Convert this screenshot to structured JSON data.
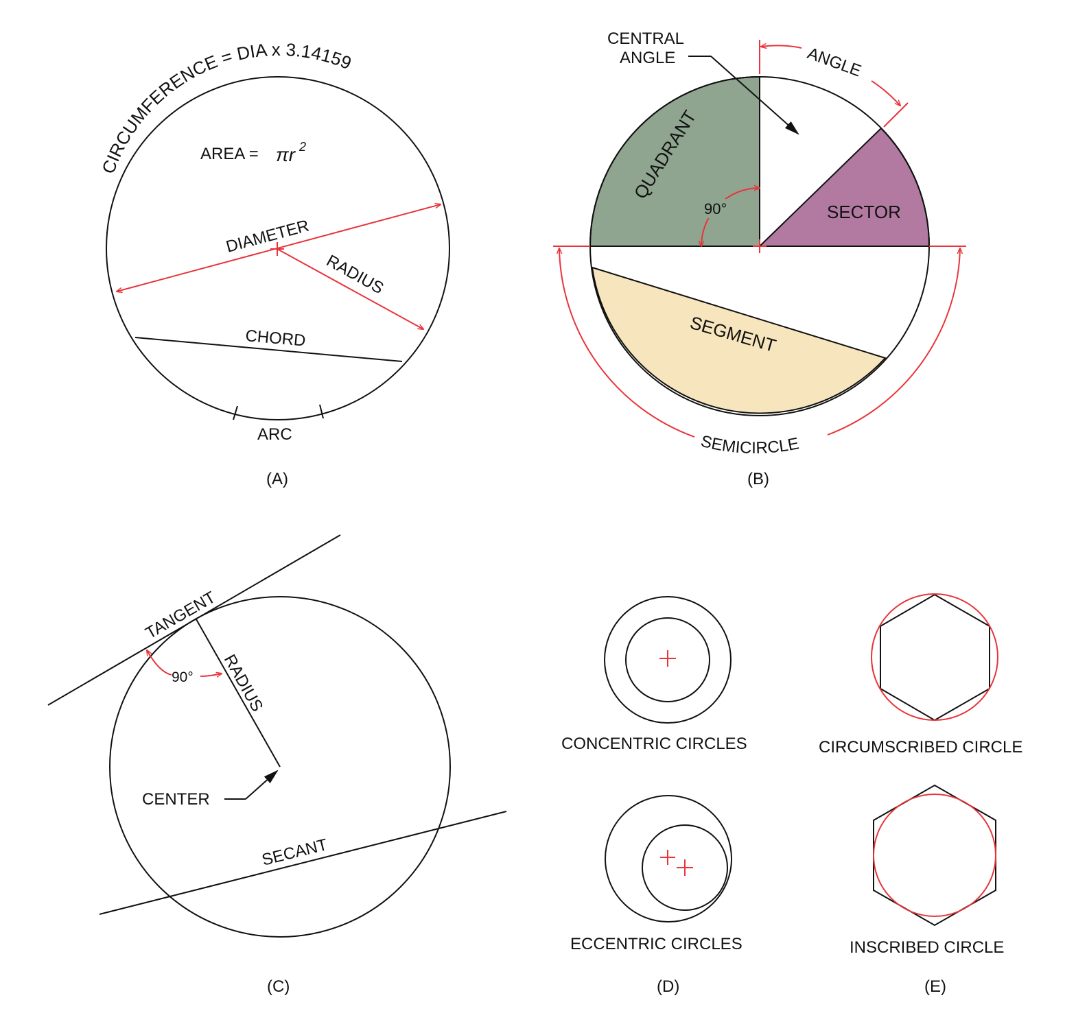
{
  "colors": {
    "ink": "#111111",
    "accent_red": "#e8343a",
    "quadrant_fill": "#8fa58f",
    "sector_fill": "#b27aa1",
    "segment_fill": "#f7e6bd",
    "background": "#ffffff"
  },
  "panel_a": {
    "caption": "(A)",
    "circumference_label": "CIRCUMFERENCE = DIA x 3.14159",
    "area_label": "AREA =",
    "area_formula_pi_r": "πr",
    "area_formula_exponent": "2",
    "diameter_label": "DIAMETER",
    "radius_label": "RADIUS",
    "chord_label": "CHORD",
    "arc_label": "ARC"
  },
  "panel_b": {
    "caption": "(B)",
    "central_angle_label_line1": "CENTRAL",
    "central_angle_label_line2": "ANGLE",
    "angle_label": "ANGLE",
    "quadrant_label": "QUADRANT",
    "right_angle_label": "90°",
    "sector_label": "SECTOR",
    "segment_label": "SEGMENT",
    "semicircle_label": "SEMICIRCLE"
  },
  "panel_c": {
    "caption": "(C)",
    "tangent_label": "TANGENT",
    "radius_label": "RADIUS",
    "right_angle_label": "90°",
    "center_label": "CENTER",
    "secant_label": "SECANT"
  },
  "panel_d": {
    "caption": "(D)",
    "concentric_label": "CONCENTRIC CIRCLES",
    "eccentric_label": "ECCENTRIC CIRCLES"
  },
  "panel_e": {
    "caption": "(E)",
    "circumscribed_label": "CIRCUMSCRIBED CIRCLE",
    "inscribed_label": "INSCRIBED CIRCLE"
  }
}
